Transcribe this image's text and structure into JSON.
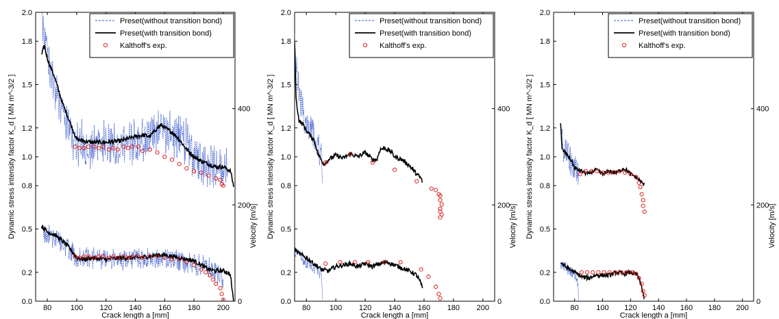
{
  "figure": {
    "panels": [
      {
        "id": "p1",
        "xlabel": "Crack length a [mm]",
        "ylabel": "Dynamic stress intensity factor K_d [ MN m^-3/2 ]",
        "y2label": "Velocity [m/s]",
        "xlim": [
          72,
          208
        ],
        "xticks": [
          80,
          100,
          120,
          140,
          160,
          180,
          200
        ],
        "ylim": [
          0.0,
          2.0
        ],
        "yticks": [
          0.0,
          0.2,
          0.5,
          0.8,
          1.0,
          1.2,
          1.5,
          1.8,
          2.0
        ],
        "y2ticks": [
          0,
          200,
          400
        ],
        "legend": [
          "Preset(without transition bond)",
          "Preset(with transition bond)",
          "Kalthoff's exp."
        ]
      },
      {
        "id": "p2",
        "xlabel": "Crack length a [mm]",
        "ylabel": "Dynamic stress intensity factor K_d [ MN m^-3/2 ]",
        "y2label": "Velocity [m/s]",
        "xlim": [
          72,
          208
        ],
        "xticks": [
          80,
          100,
          120,
          140,
          160,
          180,
          200
        ],
        "ylim": [
          0.0,
          2.0
        ],
        "yticks": [
          0.0,
          0.2,
          0.5,
          0.8,
          1.0,
          1.2,
          1.5,
          1.8,
          2.0
        ],
        "y2ticks": [
          0,
          200,
          400
        ],
        "legend": [
          "Preset(without transition bond)",
          "Preset(with transition bond)",
          "Kalthoff's exp."
        ]
      },
      {
        "id": "p3",
        "xlabel": "Crack length a [mm]",
        "ylabel": "Dynamic stress intensity factor K_d [ MN m^-3/2 ]",
        "y2label": "Velocity [m/s]",
        "xlim": [
          65,
          208
        ],
        "xticks": [
          80,
          100,
          120,
          140,
          160,
          180,
          200
        ],
        "ylim": [
          0.0,
          2.0
        ],
        "yticks": [
          0.0,
          0.2,
          0.5,
          0.8,
          1.0,
          1.2,
          1.5,
          1.8,
          2.0
        ],
        "y2ticks": [
          0,
          200,
          400
        ],
        "legend": [
          "Preset(without transition bond)",
          "Preset(with transition bond)",
          "Kalthoff's exp."
        ]
      }
    ]
  },
  "chart_data": [
    {
      "type": "line",
      "xlabel": "Crack length a [mm]",
      "ylabel": "Dynamic stress intensity factor K_d [ MN m^-3/2 ]",
      "xlim": [
        72,
        208
      ],
      "ylim": [
        0.0,
        2.0
      ],
      "series": [
        {
          "name": "Preset(without transition bond)",
          "color": "#3355cc",
          "style": "dashed-noisy",
          "x": [
            76,
            78,
            80,
            85,
            90,
            95,
            100,
            110,
            120,
            130,
            140,
            150,
            155,
            160,
            170,
            175,
            180,
            190,
            195,
            200,
            203
          ],
          "y": [
            2.0,
            1.85,
            1.7,
            1.45,
            1.3,
            1.18,
            1.1,
            1.08,
            1.1,
            1.08,
            1.1,
            1.15,
            1.2,
            1.18,
            1.12,
            1.1,
            1.0,
            0.95,
            0.93,
            0.92,
            0.9
          ],
          "spread": 0.17
        },
        {
          "name": "Preset(with transition bond)",
          "color": "#000000",
          "x": [
            76,
            78,
            80,
            85,
            90,
            95,
            100,
            110,
            120,
            130,
            140,
            145,
            150,
            155,
            158,
            160,
            165,
            170,
            175,
            180,
            185,
            190,
            195,
            200,
            205,
            207
          ],
          "y": [
            1.7,
            1.77,
            1.68,
            1.55,
            1.38,
            1.25,
            1.12,
            1.1,
            1.1,
            1.11,
            1.14,
            1.15,
            1.14,
            1.2,
            1.22,
            1.2,
            1.17,
            1.12,
            1.05,
            1.0,
            0.97,
            0.95,
            0.93,
            0.93,
            0.9,
            0.8
          ]
        },
        {
          "name": "Kalthoff's exp.",
          "color": "#dd2222",
          "marker": "o",
          "x": [
            99,
            102,
            105,
            108,
            112,
            115,
            118,
            122,
            125,
            128,
            132,
            135,
            138,
            142,
            145,
            150,
            155,
            160,
            165,
            170,
            175,
            180,
            185,
            190,
            195,
            198,
            199,
            200
          ],
          "y": [
            1.07,
            1.06,
            1.06,
            1.07,
            1.07,
            1.06,
            1.07,
            1.05,
            1.06,
            1.05,
            1.07,
            1.06,
            1.07,
            1.07,
            1.04,
            1.05,
            1.03,
            1.0,
            0.98,
            0.95,
            0.92,
            0.9,
            0.89,
            0.87,
            0.85,
            0.84,
            0.81,
            0.8
          ]
        }
      ],
      "velocity": {
        "ylabel": "Velocity [m/s]",
        "y2lim": [
          0,
          600
        ],
        "series": [
          {
            "name": "Preset(without transition bond)",
            "color": "#3355cc",
            "x": [
              76,
              80,
              85,
              90,
              95,
              100,
              110,
              120,
              130,
              140,
              150,
              160,
              170,
              180,
              190,
              195,
              200
            ],
            "y": [
              0.5,
              0.46,
              0.44,
              0.4,
              0.36,
              0.3,
              0.3,
              0.29,
              0.29,
              0.29,
              0.3,
              0.3,
              0.28,
              0.26,
              0.24,
              0.2,
              0.17
            ],
            "spread": 0.08
          },
          {
            "name": "Preset(with transition bond)",
            "color": "#000000",
            "x": [
              76,
              80,
              85,
              90,
              95,
              100,
              105,
              110,
              120,
              130,
              140,
              150,
              155,
              160,
              165,
              170,
              175,
              180,
              185,
              190,
              195,
              200,
              203,
              205,
              206,
              207
            ],
            "y": [
              0.52,
              0.48,
              0.46,
              0.42,
              0.37,
              0.3,
              0.29,
              0.3,
              0.29,
              0.3,
              0.3,
              0.31,
              0.32,
              0.32,
              0.31,
              0.3,
              0.29,
              0.28,
              0.25,
              0.22,
              0.21,
              0.21,
              0.2,
              0.18,
              0.08,
              0.0
            ]
          },
          {
            "name": "Kalthoff's exp.",
            "color": "#dd2222",
            "marker": "o",
            "x": [
              99,
              102,
              105,
              108,
              112,
              115,
              118,
              122,
              125,
              128,
              132,
              135,
              138,
              142,
              145,
              150,
              155,
              160,
              165,
              170,
              175,
              180,
              185,
              188,
              191,
              193,
              195,
              198,
              199,
              200
            ],
            "y": [
              0.31,
              0.3,
              0.31,
              0.31,
              0.3,
              0.31,
              0.31,
              0.3,
              0.31,
              0.3,
              0.31,
              0.3,
              0.31,
              0.31,
              0.3,
              0.31,
              0.31,
              0.3,
              0.29,
              0.29,
              0.27,
              0.25,
              0.22,
              0.2,
              0.18,
              0.15,
              0.12,
              0.09,
              0.05,
              0.01
            ]
          }
        ]
      }
    },
    {
      "type": "line",
      "xlabel": "Crack length a [mm]",
      "ylabel": "Dynamic stress intensity factor K_d [ MN m^-3/2 ]",
      "xlim": [
        72,
        208
      ],
      "ylim": [
        0.0,
        2.0
      ],
      "series": [
        {
          "name": "Preset(without transition bond)",
          "color": "#3355cc",
          "style": "dashed-noisy",
          "x": [
            72,
            74,
            76,
            78,
            80,
            82,
            84,
            86,
            88,
            90,
            91
          ],
          "y": [
            1.8,
            1.55,
            1.38,
            1.3,
            1.25,
            1.2,
            1.15,
            1.1,
            1.05,
            1.0,
            0.9
          ],
          "spread": 0.12
        },
        {
          "name": "Preset(with transition bond)",
          "color": "#000000",
          "x": [
            72,
            73,
            75,
            78,
            80,
            85,
            88,
            90,
            92,
            95,
            100,
            105,
            110,
            115,
            120,
            125,
            128,
            130,
            133,
            135,
            138,
            140,
            145,
            150,
            155,
            158,
            159
          ],
          "y": [
            1.8,
            1.4,
            1.25,
            1.22,
            1.18,
            1.12,
            1.02,
            0.98,
            0.95,
            0.98,
            1.01,
            0.99,
            1.02,
            1.0,
            1.03,
            0.98,
            0.98,
            1.05,
            1.06,
            1.05,
            1.03,
            1.0,
            0.98,
            0.94,
            0.88,
            0.85,
            0.82
          ]
        },
        {
          "name": "Kalthoff's exp.",
          "color": "#dd2222",
          "marker": "o",
          "x": [
            93,
            110,
            125,
            140,
            155,
            165,
            168,
            170,
            171,
            171,
            172,
            171,
            171,
            172,
            171
          ],
          "y": [
            0.96,
            1.02,
            0.96,
            0.91,
            0.83,
            0.78,
            0.77,
            0.74,
            0.73,
            0.7,
            0.67,
            0.64,
            0.62,
            0.6,
            0.58
          ]
        }
      ],
      "velocity": {
        "ylabel": "Velocity [m/s]",
        "y2lim": [
          0,
          600
        ],
        "series": [
          {
            "name": "Preset(without transition bond)",
            "color": "#3355cc",
            "x": [
              72,
              75,
              78,
              80,
              84,
              88,
              90,
              91
            ],
            "y": [
              0.34,
              0.32,
              0.29,
              0.27,
              0.25,
              0.22,
              0.18,
              0.0
            ],
            "spread": 0.05
          },
          {
            "name": "Preset(with transition bond)",
            "color": "#000000",
            "x": [
              72,
              75,
              80,
              85,
              90,
              95,
              100,
              105,
              110,
              115,
              120,
              125,
              130,
              135,
              140,
              145,
              150,
              155,
              158,
              159
            ],
            "y": [
              0.36,
              0.33,
              0.3,
              0.26,
              0.22,
              0.21,
              0.24,
              0.25,
              0.26,
              0.24,
              0.26,
              0.24,
              0.26,
              0.27,
              0.25,
              0.23,
              0.21,
              0.18,
              0.12,
              0.08
            ]
          },
          {
            "name": "Kalthoff's exp.",
            "color": "#dd2222",
            "marker": "o",
            "x": [
              93,
              103,
              113,
              122,
              133,
              144,
              158,
              163,
              168,
              170,
              171
            ],
            "y": [
              0.26,
              0.27,
              0.27,
              0.27,
              0.27,
              0.27,
              0.22,
              0.17,
              0.1,
              0.05,
              0.02
            ]
          }
        ]
      }
    },
    {
      "type": "line",
      "xlabel": "Crack length a [mm]",
      "ylabel": "Dynamic stress intensity factor K_d [ MN m^-3/2 ]",
      "xlim": [
        65,
        208
      ],
      "ylim": [
        0.0,
        2.0
      ],
      "series": [
        {
          "name": "Preset(without transition bond)",
          "color": "#3355cc",
          "style": "dashed-noisy",
          "x": [
            70,
            72,
            74,
            76,
            78,
            80,
            82,
            83
          ],
          "y": [
            1.2,
            1.05,
            1.02,
            1.0,
            0.95,
            0.92,
            0.9,
            0.88
          ],
          "spread": 0.1
        },
        {
          "name": "Preset(with transition bond)",
          "color": "#000000",
          "x": [
            70,
            71,
            73,
            75,
            78,
            80,
            85,
            90,
            95,
            100,
            105,
            110,
            115,
            118,
            120,
            122,
            125,
            128,
            130
          ],
          "y": [
            1.24,
            1.05,
            1.03,
            1.01,
            0.97,
            0.92,
            0.9,
            0.88,
            0.91,
            0.88,
            0.9,
            0.89,
            0.92,
            0.9,
            0.88,
            0.87,
            0.85,
            0.82,
            0.8
          ]
        },
        {
          "name": "Kalthoff's exp.",
          "color": "#dd2222",
          "marker": "o",
          "x": [
            84,
            88,
            92,
            96,
            100,
            104,
            108,
            112,
            116,
            120,
            124,
            126,
            127,
            128,
            129,
            129,
            130
          ],
          "y": [
            0.88,
            0.9,
            0.9,
            0.9,
            0.89,
            0.89,
            0.89,
            0.9,
            0.89,
            0.88,
            0.86,
            0.82,
            0.79,
            0.74,
            0.7,
            0.66,
            0.62
          ]
        }
      ],
      "velocity": {
        "ylabel": "Velocity [m/s]",
        "y2lim": [
          0,
          600
        ],
        "series": [
          {
            "name": "Preset(without transition bond)",
            "color": "#3355cc",
            "x": [
              70,
              74,
              78,
              80,
              82,
              83
            ],
            "y": [
              0.26,
              0.23,
              0.2,
              0.18,
              0.16,
              0.0
            ],
            "spread": 0.04
          },
          {
            "name": "Preset(with transition bond)",
            "color": "#000000",
            "x": [
              70,
              72,
              75,
              80,
              85,
              90,
              95,
              100,
              105,
              110,
              115,
              120,
              125,
              128,
              130
            ],
            "y": [
              0.27,
              0.25,
              0.23,
              0.2,
              0.17,
              0.16,
              0.18,
              0.18,
              0.18,
              0.2,
              0.19,
              0.2,
              0.18,
              0.1,
              0.01
            ]
          },
          {
            "name": "Kalthoff's exp.",
            "color": "#dd2222",
            "marker": "o",
            "x": [
              85,
              89,
              93,
              97,
              101,
              105,
              109,
              113,
              117,
              121,
              124,
              126,
              128,
              129,
              130
            ],
            "y": [
              0.2,
              0.2,
              0.2,
              0.2,
              0.2,
              0.2,
              0.2,
              0.2,
              0.2,
              0.2,
              0.19,
              0.16,
              0.12,
              0.07,
              0.04
            ]
          }
        ]
      }
    }
  ]
}
